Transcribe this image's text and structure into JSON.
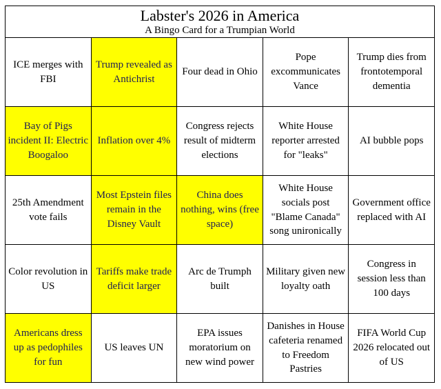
{
  "header": {
    "title": "Labster's 2026 in America",
    "subtitle": "A Bingo Card for a Trumpian World"
  },
  "colors": {
    "grid_line": "#000000",
    "cell_background": "#ffffff",
    "highlight_background": "#ffff00",
    "cell_text": "#000000",
    "highlight_text": "#1e1e55"
  },
  "grid": {
    "rows": 5,
    "cols": 5,
    "cells": [
      {
        "label": "ICE merges with FBI",
        "highlighted": false
      },
      {
        "label": "Trump revealed as Antichrist",
        "highlighted": true
      },
      {
        "label": "Four dead in Ohio",
        "highlighted": false
      },
      {
        "label": "Pope excommunicates Vance",
        "highlighted": false
      },
      {
        "label": "Trump dies from frontotemporal dementia",
        "highlighted": false
      },
      {
        "label": "Bay of Pigs incident II: Electric Boogaloo",
        "highlighted": true
      },
      {
        "label": "Inflation over 4%",
        "highlighted": true
      },
      {
        "label": "Congress rejects result of midterm elections",
        "highlighted": false
      },
      {
        "label": "White House reporter arrested for \"leaks\"",
        "highlighted": false
      },
      {
        "label": "AI bubble pops",
        "highlighted": false
      },
      {
        "label": "25th Amendment vote fails",
        "highlighted": false
      },
      {
        "label": "Most Epstein files remain in the Disney Vault",
        "highlighted": true
      },
      {
        "label": "China does nothing, wins (free space)",
        "highlighted": true
      },
      {
        "label": "White House socials post \"Blame Canada\" song unironically",
        "highlighted": false
      },
      {
        "label": "Government office replaced with AI",
        "highlighted": false
      },
      {
        "label": "Color revolution in US",
        "highlighted": false
      },
      {
        "label": "Tariffs make trade deficit larger",
        "highlighted": true
      },
      {
        "label": "Arc de Trumph built",
        "highlighted": false
      },
      {
        "label": "Military given new loyalty oath",
        "highlighted": false
      },
      {
        "label": "Congress in session less than 100 days",
        "highlighted": false
      },
      {
        "label": "Americans dress up as pedophiles for fun",
        "highlighted": true
      },
      {
        "label": "US leaves UN",
        "highlighted": false
      },
      {
        "label": "EPA issues moratorium on new wind power",
        "highlighted": false
      },
      {
        "label": "Danishes in House cafeteria renamed to Freedom Pastries",
        "highlighted": false
      },
      {
        "label": "FIFA World Cup 2026 relocated out of US",
        "highlighted": false
      }
    ]
  }
}
